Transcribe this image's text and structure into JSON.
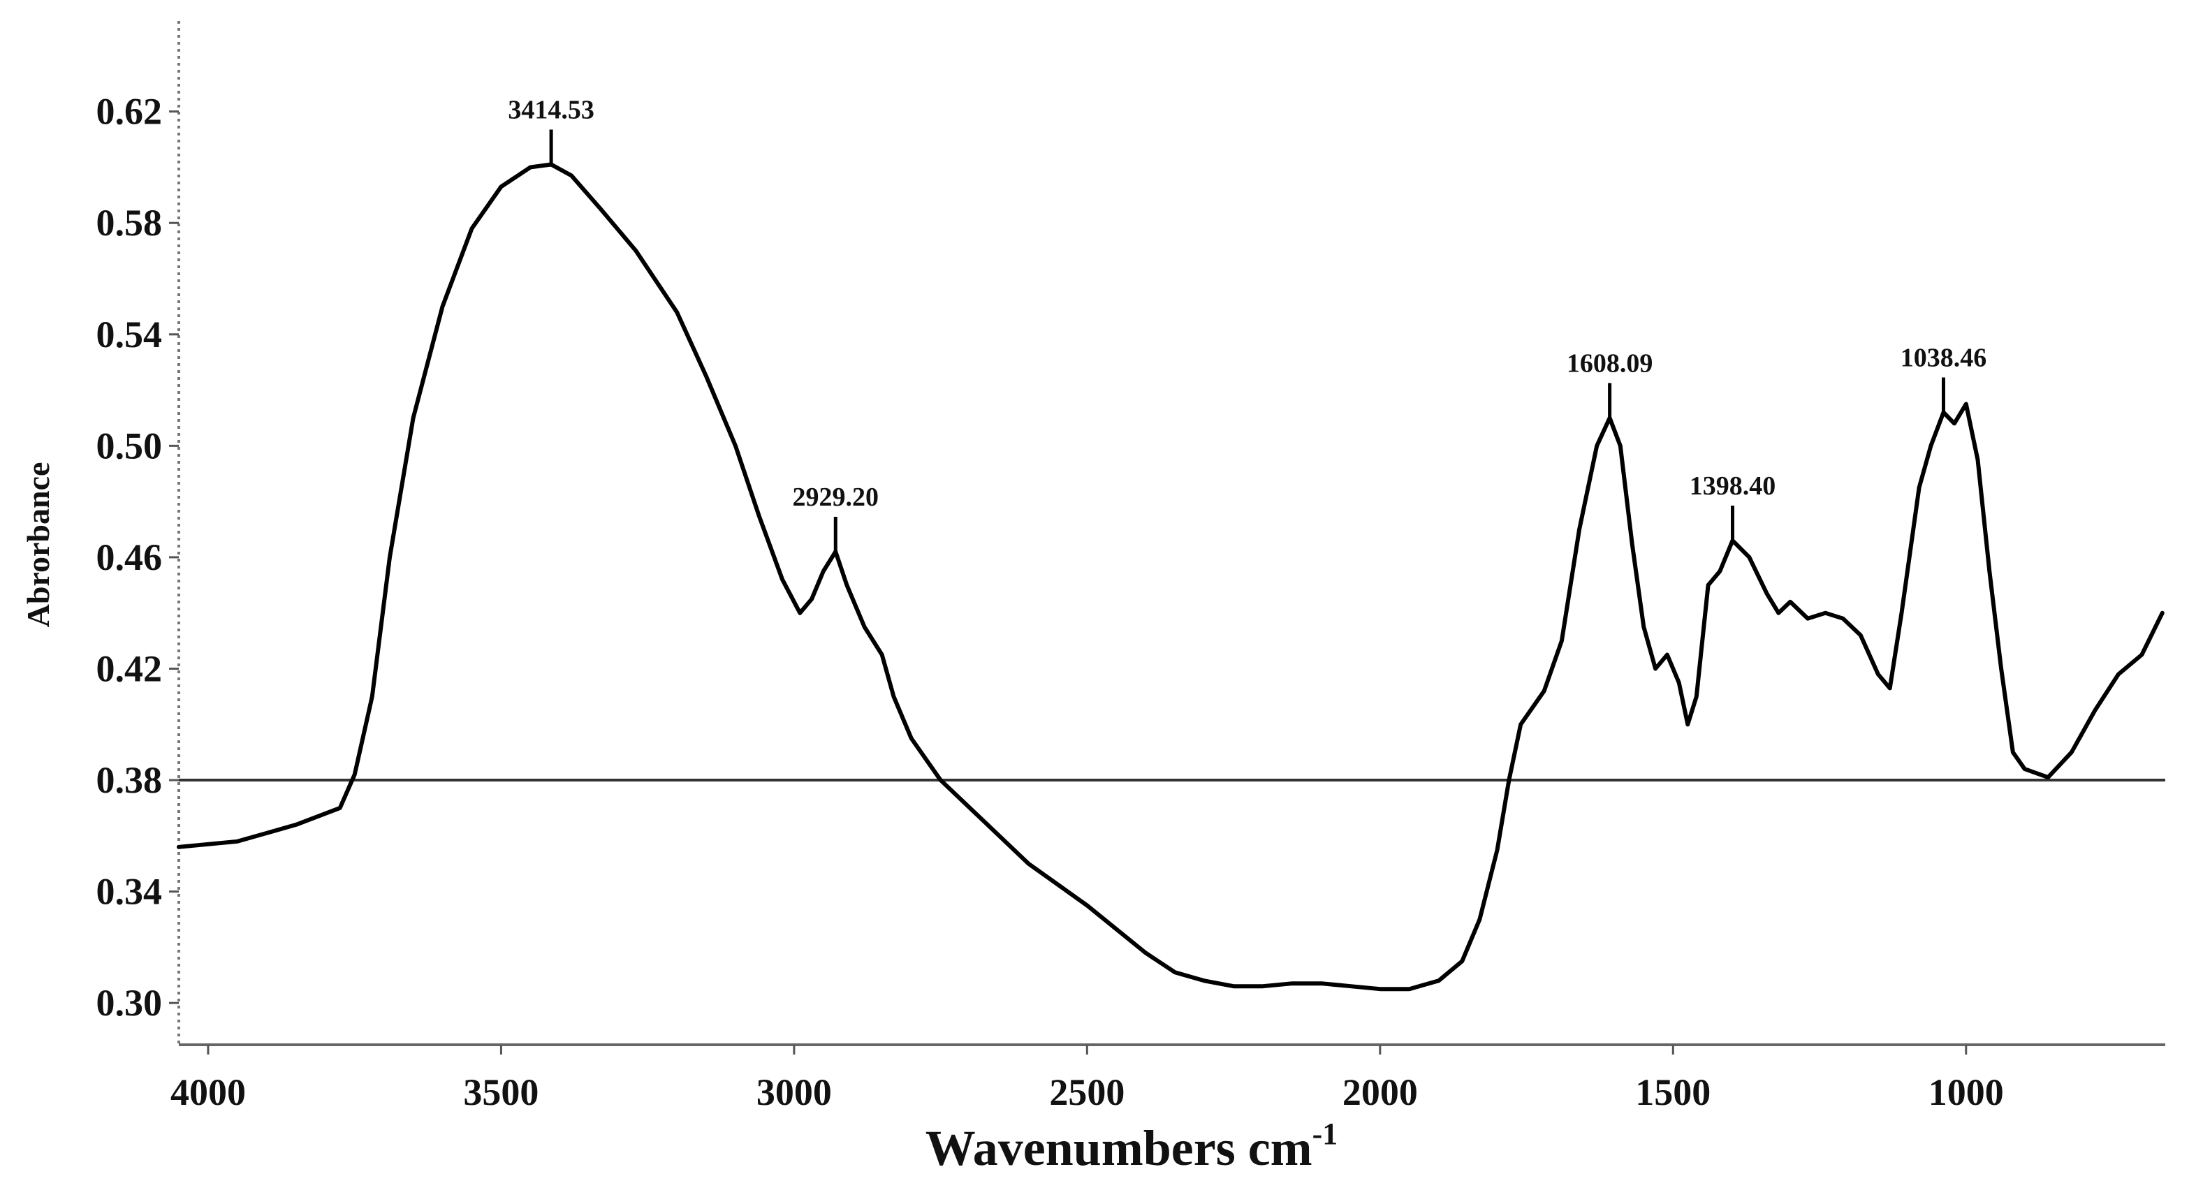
{
  "chart_data": {
    "type": "line",
    "title": "",
    "xlabel": "Wavenumbers cm",
    "xlabel_superscript": "-1",
    "ylabel": "Abrorbance",
    "xlim": [
      4050,
      660
    ],
    "ylim": [
      0.285,
      0.65
    ],
    "x_reversed": true,
    "x_ticks": [
      {
        "value": 4000,
        "label": "4000"
      },
      {
        "value": 3500,
        "label": "3500"
      },
      {
        "value": 3000,
        "label": "3000"
      },
      {
        "value": 2500,
        "label": "2500"
      },
      {
        "value": 2000,
        "label": "2000"
      },
      {
        "value": 1500,
        "label": "1500"
      },
      {
        "value": 1000,
        "label": "1000"
      }
    ],
    "y_ticks": [
      {
        "value": 0.62,
        "label": "0.62"
      },
      {
        "value": 0.58,
        "label": "0.58"
      },
      {
        "value": 0.54,
        "label": "0.54"
      },
      {
        "value": 0.5,
        "label": "0.50"
      },
      {
        "value": 0.46,
        "label": "0.46"
      },
      {
        "value": 0.42,
        "label": "0.42"
      },
      {
        "value": 0.38,
        "label": "0.38"
      },
      {
        "value": 0.34,
        "label": "0.34"
      },
      {
        "value": 0.3,
        "label": "0.30"
      }
    ],
    "baseline": 0.38,
    "series": [
      {
        "points": [
          [
            4050,
            0.356
          ],
          [
            3950,
            0.358
          ],
          [
            3850,
            0.364
          ],
          [
            3800,
            0.368
          ],
          [
            3775,
            0.37
          ],
          [
            3750,
            0.382
          ],
          [
            3720,
            0.41
          ],
          [
            3690,
            0.46
          ],
          [
            3650,
            0.51
          ],
          [
            3600,
            0.55
          ],
          [
            3550,
            0.578
          ],
          [
            3500,
            0.593
          ],
          [
            3450,
            0.6
          ],
          [
            3414.53,
            0.601
          ],
          [
            3380,
            0.597
          ],
          [
            3330,
            0.585
          ],
          [
            3270,
            0.57
          ],
          [
            3200,
            0.548
          ],
          [
            3150,
            0.525
          ],
          [
            3100,
            0.5
          ],
          [
            3060,
            0.475
          ],
          [
            3020,
            0.452
          ],
          [
            2990,
            0.44
          ],
          [
            2970,
            0.445
          ],
          [
            2950,
            0.455
          ],
          [
            2929.2,
            0.462
          ],
          [
            2910,
            0.45
          ],
          [
            2880,
            0.435
          ],
          [
            2850,
            0.425
          ],
          [
            2830,
            0.41
          ],
          [
            2800,
            0.395
          ],
          [
            2750,
            0.38
          ],
          [
            2700,
            0.37
          ],
          [
            2600,
            0.35
          ],
          [
            2500,
            0.335
          ],
          [
            2400,
            0.318
          ],
          [
            2350,
            0.311
          ],
          [
            2300,
            0.308
          ],
          [
            2250,
            0.306
          ],
          [
            2200,
            0.306
          ],
          [
            2150,
            0.307
          ],
          [
            2100,
            0.307
          ],
          [
            2050,
            0.306
          ],
          [
            2000,
            0.305
          ],
          [
            1950,
            0.305
          ],
          [
            1900,
            0.308
          ],
          [
            1860,
            0.315
          ],
          [
            1830,
            0.33
          ],
          [
            1800,
            0.355
          ],
          [
            1780,
            0.38
          ],
          [
            1760,
            0.4
          ],
          [
            1720,
            0.412
          ],
          [
            1690,
            0.43
          ],
          [
            1660,
            0.47
          ],
          [
            1630,
            0.5
          ],
          [
            1608.09,
            0.51
          ],
          [
            1590,
            0.5
          ],
          [
            1570,
            0.465
          ],
          [
            1550,
            0.435
          ],
          [
            1530,
            0.42
          ],
          [
            1510,
            0.425
          ],
          [
            1490,
            0.415
          ],
          [
            1475,
            0.4
          ],
          [
            1460,
            0.41
          ],
          [
            1440,
            0.45
          ],
          [
            1420,
            0.455
          ],
          [
            1398.4,
            0.466
          ],
          [
            1370,
            0.46
          ],
          [
            1340,
            0.447
          ],
          [
            1320,
            0.44
          ],
          [
            1300,
            0.444
          ],
          [
            1270,
            0.438
          ],
          [
            1240,
            0.44
          ],
          [
            1210,
            0.438
          ],
          [
            1180,
            0.432
          ],
          [
            1150,
            0.418
          ],
          [
            1130,
            0.413
          ],
          [
            1110,
            0.44
          ],
          [
            1080,
            0.485
          ],
          [
            1060,
            0.5
          ],
          [
            1038.46,
            0.512
          ],
          [
            1020,
            0.508
          ],
          [
            1000,
            0.515
          ],
          [
            980,
            0.495
          ],
          [
            960,
            0.455
          ],
          [
            940,
            0.42
          ],
          [
            920,
            0.39
          ],
          [
            900,
            0.384
          ],
          [
            860,
            0.381
          ],
          [
            820,
            0.39
          ],
          [
            780,
            0.405
          ],
          [
            740,
            0.418
          ],
          [
            700,
            0.425
          ],
          [
            665,
            0.44
          ]
        ]
      }
    ],
    "annotations": [
      {
        "x": 3414.53,
        "y": 0.601,
        "text": "3414.53"
      },
      {
        "x": 2929.2,
        "y": 0.462,
        "text": "2929.20"
      },
      {
        "x": 1608.09,
        "y": 0.51,
        "text": "1608.09"
      },
      {
        "x": 1398.4,
        "y": 0.466,
        "text": "1398.40"
      },
      {
        "x": 1038.46,
        "y": 0.512,
        "text": "1038.46"
      }
    ],
    "grid": false,
    "legend": "none",
    "line_color": "#000000"
  }
}
